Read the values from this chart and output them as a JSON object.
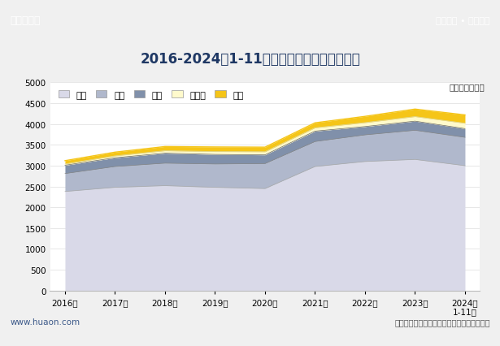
{
  "title": "2016-2024年1-11月浙江省各发电类型发电量",
  "unit_label": "单位：亿千瓦时",
  "xlabel_note": "1-11月",
  "source_text": "数据来源：国家统计局，华经产业研究院整理",
  "website_left": "www.huaon.com",
  "header_left": "华经情报网",
  "header_right": "专业严谨 • 客观科学",
  "years": [
    2016,
    2017,
    2018,
    2019,
    2020,
    2021,
    2022,
    2023,
    2024
  ],
  "x_labels": [
    "2016年",
    "2017年",
    "2018年",
    "2019年",
    "2020年",
    "2021年",
    "2022年",
    "2023年",
    "2024年\n1-11月"
  ],
  "legend_labels": [
    "火力",
    "核能",
    "水力",
    "太阳能",
    "风力"
  ],
  "fire": [
    2380,
    2480,
    2520,
    2480,
    2450,
    2980,
    3100,
    3150,
    3000
  ],
  "nuclear": [
    430,
    500,
    540,
    560,
    600,
    600,
    640,
    700,
    680
  ],
  "water": [
    200,
    210,
    240,
    230,
    210,
    250,
    200,
    220,
    210
  ],
  "solar": [
    30,
    45,
    60,
    70,
    75,
    80,
    95,
    110,
    130
  ],
  "wind": [
    80,
    90,
    100,
    110,
    110,
    120,
    150,
    180,
    200
  ],
  "ylim": [
    0,
    5000
  ],
  "yticks": [
    0,
    500,
    1000,
    1500,
    2000,
    2500,
    3000,
    3500,
    4000,
    4500,
    5000
  ],
  "fire_color": "#d9d9e8",
  "nuclear_color": "#b0b8cc",
  "water_color": "#8090aa",
  "solar_color": "#fffacc",
  "wind_color": "#f5c518",
  "bg_color": "#ffffff",
  "header_bg": "#3d5a8a",
  "plot_bg": "#ffffff",
  "title_color": "#1f3864"
}
